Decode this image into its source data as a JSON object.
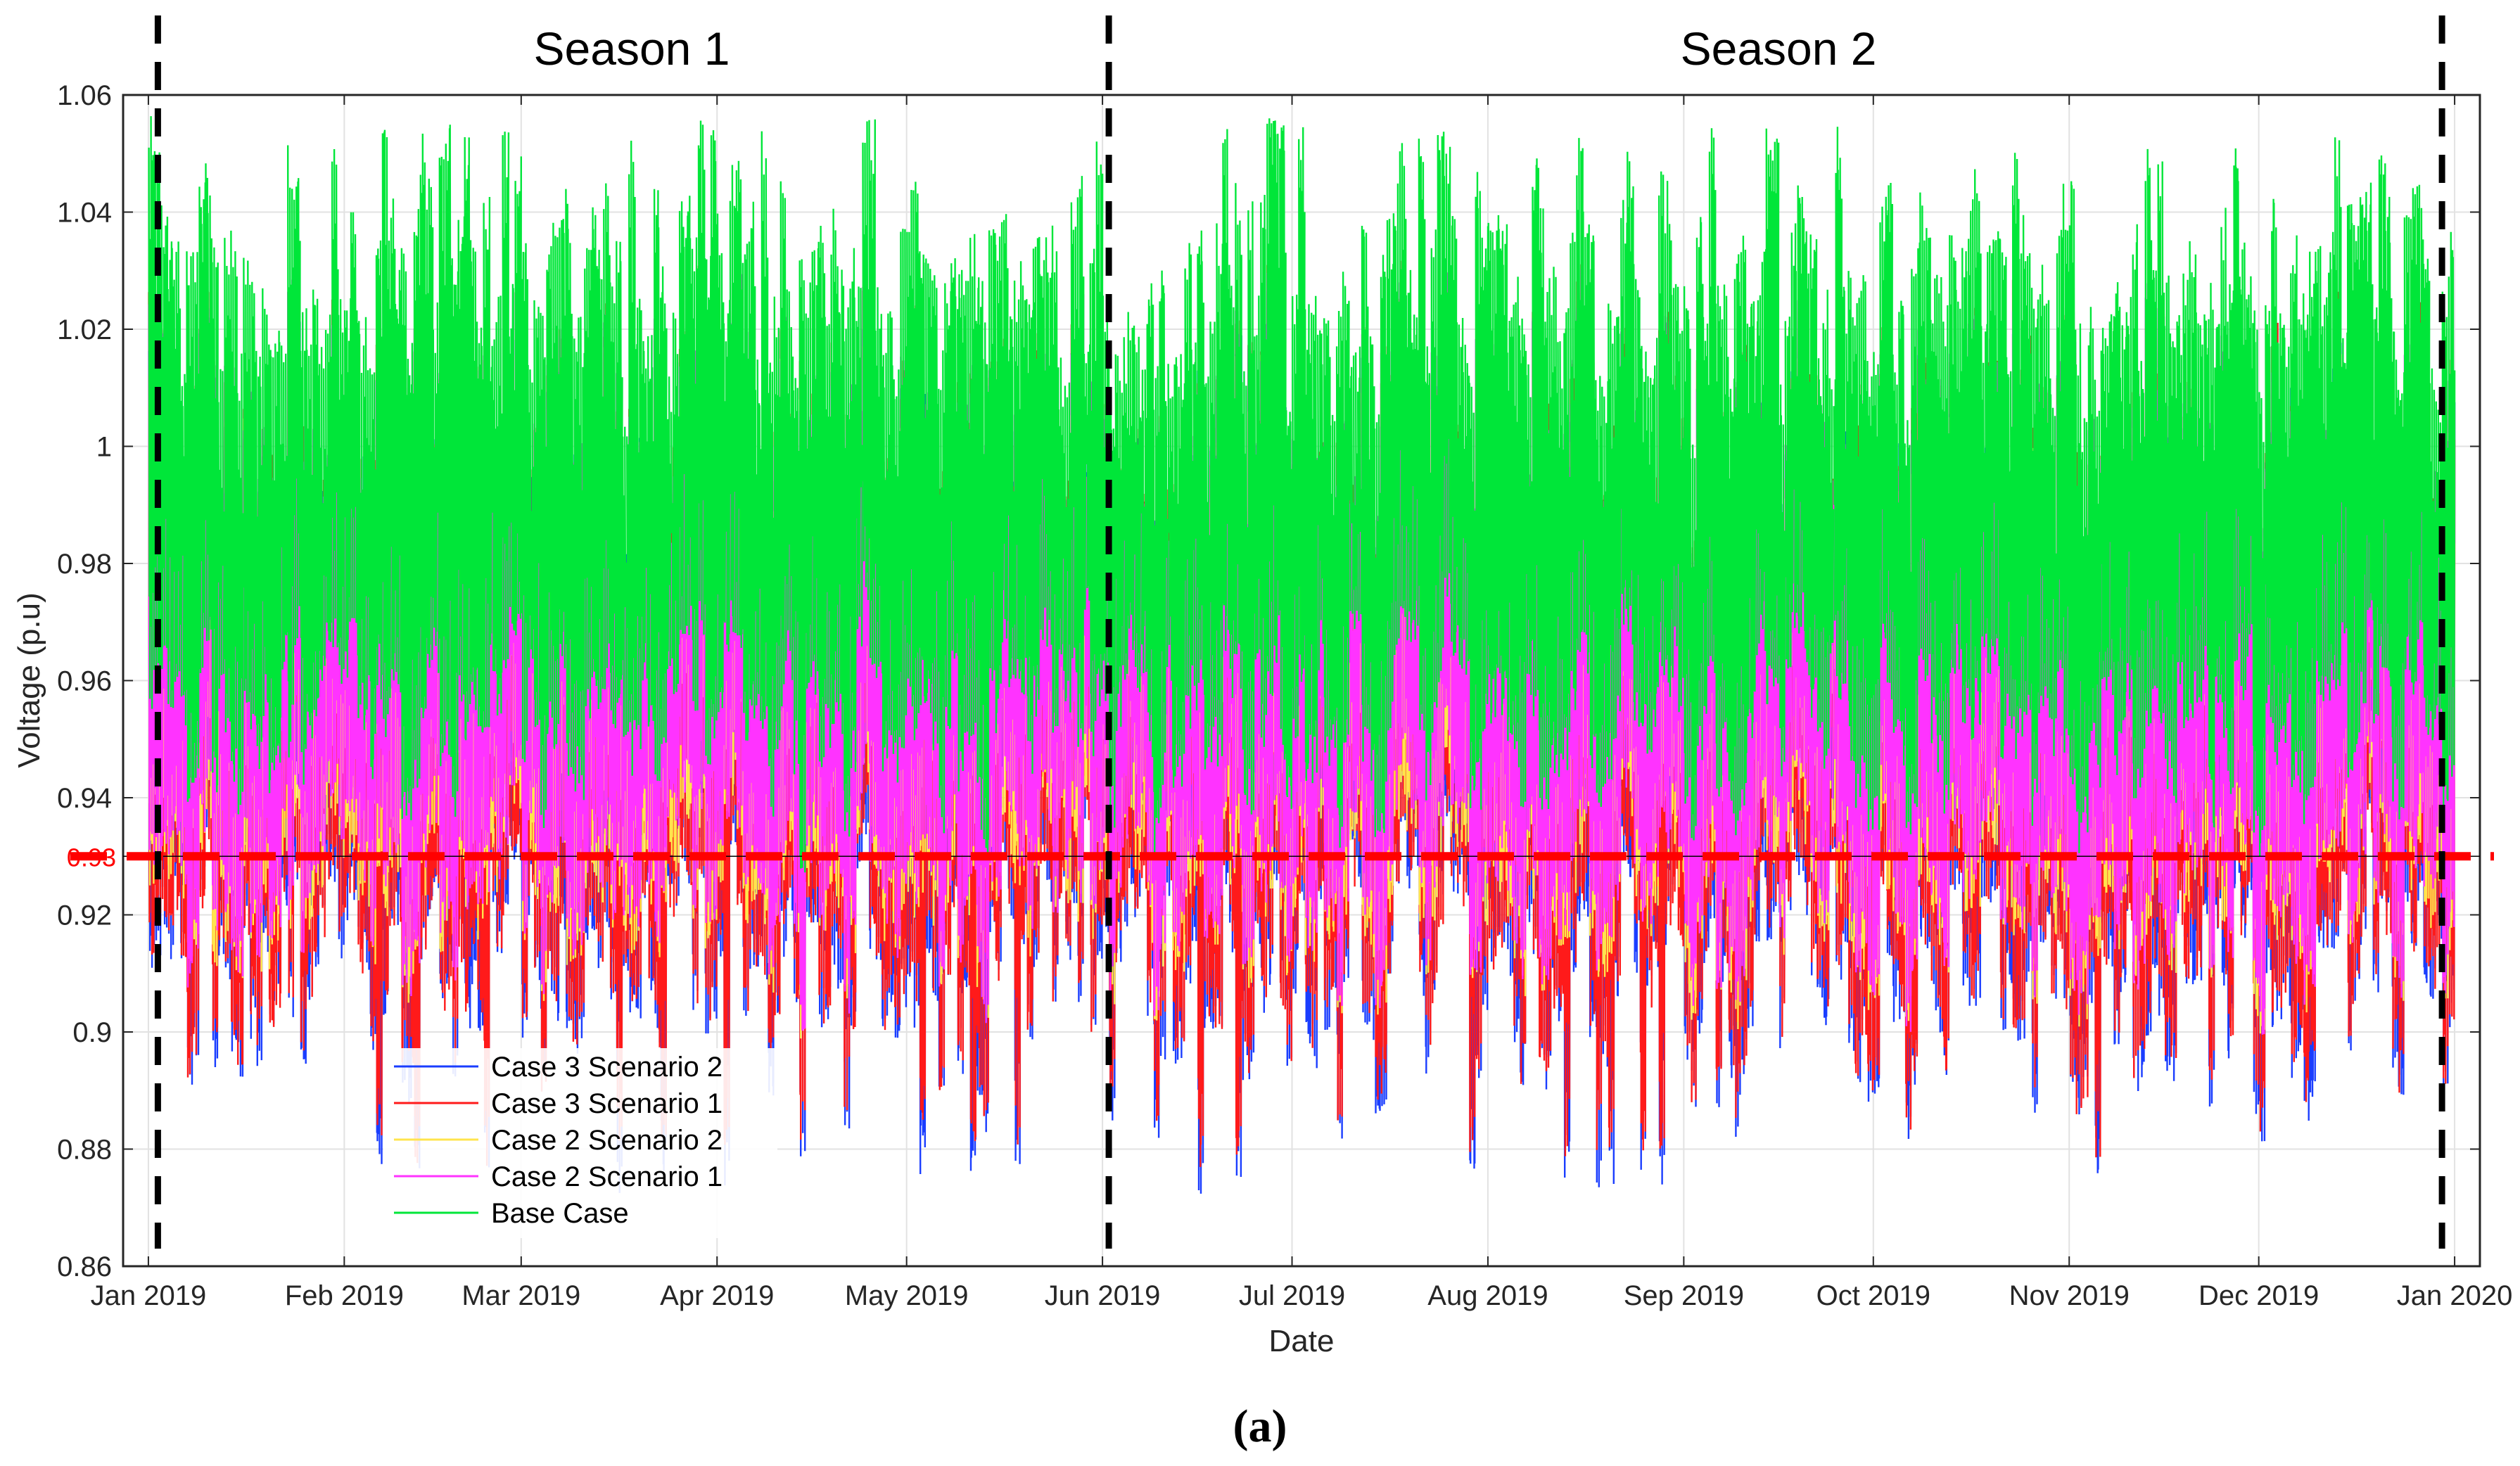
{
  "chart_data": {
    "type": "line",
    "xlabel": "Date",
    "ylabel": "Voltage (p.u)",
    "caption": "(a)",
    "ylim": [
      0.86,
      1.06
    ],
    "yticks": [
      0.86,
      0.88,
      0.9,
      0.92,
      0.94,
      0.96,
      0.98,
      1,
      1.02,
      1.04,
      1.06
    ],
    "ytick_labels": [
      "0.86",
      "0.88",
      "0.9",
      "0.92",
      "0.94",
      "0.96",
      "0.98",
      "1",
      "1.02",
      "1.04",
      "1.06"
    ],
    "xlim_day": [
      -4,
      369
    ],
    "xticks_day": [
      0,
      31,
      59,
      90,
      120,
      151,
      181,
      212,
      243,
      273,
      304,
      334,
      365
    ],
    "xtick_labels": [
      "Jan 2019",
      "Feb 2019",
      "Mar 2019",
      "Apr 2019",
      "May 2019",
      "Jun 2019",
      "Jul 2019",
      "Aug 2019",
      "Sep 2019",
      "Oct 2019",
      "Nov 2019",
      "Dec 2019",
      "Jan 2020"
    ],
    "grid": true,
    "threshold": {
      "value": 0.93,
      "label": "0.93",
      "color": "#ff0000"
    },
    "season_boundaries_day": [
      1.5,
      152,
      363
    ],
    "seasons": [
      {
        "label": "Season 1",
        "center_day": 76.5
      },
      {
        "label": "Season 2",
        "center_day": 258
      }
    ],
    "legend_location": "lower-left",
    "series": [
      {
        "name": "Case 3 Scenario 2",
        "color": "#1a3dff",
        "daily_min_range": [
          0.872,
          0.935
        ],
        "daily_max_range": [
          0.97,
          1.03
        ]
      },
      {
        "name": "Case 3 Scenario 1",
        "color": "#ff1a1a",
        "daily_min_range": [
          0.876,
          0.935
        ],
        "daily_max_range": [
          0.97,
          1.035
        ]
      },
      {
        "name": "Case 2 Scenario 2",
        "color": "#ffe44d",
        "daily_min_range": [
          0.895,
          0.94
        ],
        "daily_max_range": [
          0.96,
          1.03
        ]
      },
      {
        "name": "Case 2 Scenario 1",
        "color": "#ff33ff",
        "daily_min_range": [
          0.895,
          0.945
        ],
        "daily_max_range": [
          0.97,
          1.035
        ]
      },
      {
        "name": "Base Case",
        "color": "#00e639",
        "daily_min_range": [
          0.925,
          0.97
        ],
        "daily_max_range": [
          0.99,
          1.058
        ]
      }
    ],
    "colors": {
      "grid": "#e2e2e2",
      "axis": "#262626",
      "boundary": "#000000"
    }
  }
}
